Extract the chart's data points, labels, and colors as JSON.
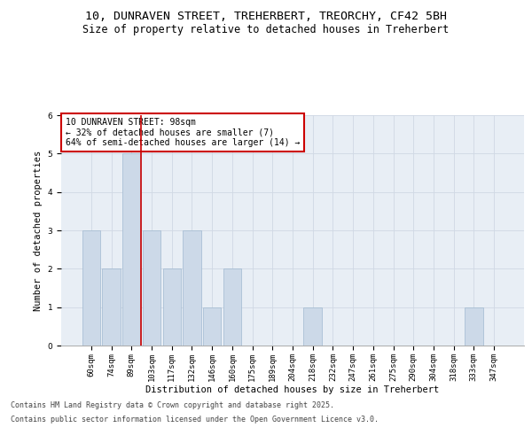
{
  "title_line1": "10, DUNRAVEN STREET, TREHERBERT, TREORCHY, CF42 5BH",
  "title_line2": "Size of property relative to detached houses in Treherbert",
  "xlabel": "Distribution of detached houses by size in Treherbert",
  "ylabel": "Number of detached properties",
  "categories": [
    "60sqm",
    "74sqm",
    "89sqm",
    "103sqm",
    "117sqm",
    "132sqm",
    "146sqm",
    "160sqm",
    "175sqm",
    "189sqm",
    "204sqm",
    "218sqm",
    "232sqm",
    "247sqm",
    "261sqm",
    "275sqm",
    "290sqm",
    "304sqm",
    "318sqm",
    "333sqm",
    "347sqm"
  ],
  "values": [
    3,
    2,
    5,
    3,
    2,
    3,
    1,
    2,
    0,
    0,
    0,
    1,
    0,
    0,
    0,
    0,
    0,
    0,
    0,
    1,
    0
  ],
  "bar_color": "#ccd9e8",
  "bar_edge_color": "#a0b8d0",
  "red_line_index": 2,
  "annotation_text_line1": "10 DUNRAVEN STREET: 98sqm",
  "annotation_text_line2": "← 32% of detached houses are smaller (7)",
  "annotation_text_line3": "64% of semi-detached houses are larger (14) →",
  "annotation_box_color": "#ffffff",
  "annotation_box_edge": "#cc0000",
  "red_line_color": "#cc0000",
  "grid_color": "#d0d8e4",
  "background_color": "#e8eef5",
  "ylim": [
    0,
    6
  ],
  "yticks": [
    0,
    1,
    2,
    3,
    4,
    5,
    6
  ],
  "footer_line1": "Contains HM Land Registry data © Crown copyright and database right 2025.",
  "footer_line2": "Contains public sector information licensed under the Open Government Licence v3.0.",
  "title_fontsize": 9.5,
  "subtitle_fontsize": 8.5,
  "axis_label_fontsize": 7.5,
  "tick_fontsize": 6.5,
  "annotation_fontsize": 7,
  "footer_fontsize": 6
}
